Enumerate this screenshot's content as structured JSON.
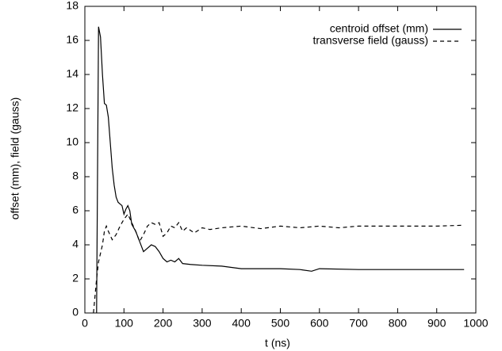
{
  "chart_data": {
    "type": "line",
    "xlabel": "t (ns)",
    "ylabel": "offset (mm), field (gauss)",
    "xlim": [
      0,
      1000
    ],
    "ylim": [
      0,
      18
    ],
    "xticks": [
      0,
      100,
      200,
      300,
      400,
      500,
      600,
      700,
      800,
      900,
      1000
    ],
    "yticks": [
      0,
      2,
      4,
      6,
      8,
      10,
      12,
      14,
      16,
      18
    ],
    "legend": "top-right",
    "grid": false,
    "series": [
      {
        "name": "centroid offset (mm)",
        "color": "#000000",
        "line_style": "solid",
        "x": [
          30,
          35,
          40,
          45,
          50,
          55,
          60,
          65,
          70,
          75,
          80,
          85,
          90,
          95,
          100,
          105,
          110,
          115,
          120,
          130,
          140,
          150,
          160,
          170,
          180,
          190,
          200,
          210,
          220,
          230,
          240,
          250,
          270,
          300,
          350,
          400,
          450,
          500,
          550,
          580,
          600,
          700,
          800,
          900,
          970
        ],
        "values": [
          0,
          16.8,
          16.2,
          14,
          12.3,
          12.2,
          11.5,
          10,
          8.5,
          7.5,
          6.8,
          6.5,
          6.4,
          6.3,
          5.8,
          6.1,
          6.3,
          6.0,
          5.2,
          4.8,
          4.2,
          3.6,
          3.8,
          4.0,
          3.9,
          3.6,
          3.2,
          3.0,
          3.1,
          3.0,
          3.2,
          2.9,
          2.85,
          2.8,
          2.75,
          2.6,
          2.6,
          2.6,
          2.55,
          2.45,
          2.6,
          2.55,
          2.55,
          2.55,
          2.55
        ]
      },
      {
        "name": "transverse field (gauss)",
        "color": "#000000",
        "line_style": "dashed",
        "x": [
          22,
          30,
          35,
          40,
          45,
          50,
          55,
          60,
          70,
          80,
          90,
          100,
          110,
          120,
          130,
          140,
          150,
          160,
          170,
          180,
          190,
          200,
          210,
          220,
          230,
          240,
          250,
          260,
          280,
          300,
          320,
          350,
          400,
          450,
          500,
          550,
          600,
          650,
          700,
          800,
          900,
          970
        ],
        "values": [
          0,
          2,
          3,
          3.5,
          4,
          4.8,
          5.1,
          4.8,
          4.3,
          4.6,
          5.1,
          5.5,
          5.8,
          5.3,
          4.8,
          4.2,
          4.6,
          5.1,
          5.3,
          5.2,
          5.3,
          4.5,
          4.7,
          5.1,
          5.0,
          5.3,
          4.8,
          5.0,
          4.7,
          5.0,
          4.9,
          5.0,
          5.1,
          4.95,
          5.1,
          5.0,
          5.1,
          5.0,
          5.1,
          5.1,
          5.1,
          5.15
        ]
      }
    ]
  }
}
